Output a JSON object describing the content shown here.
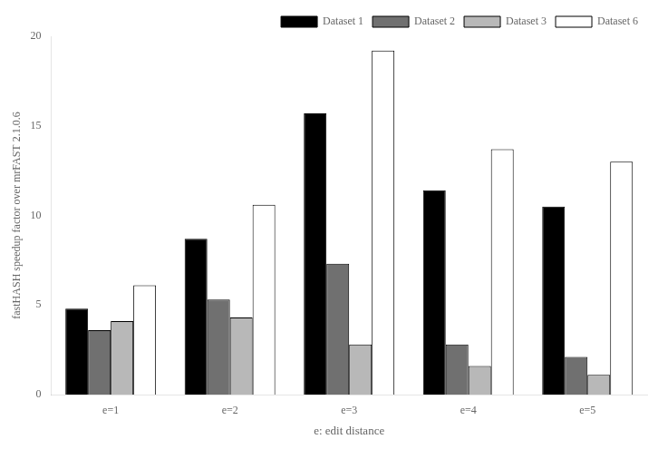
{
  "chart_data": {
    "type": "bar",
    "categories": [
      "e=1",
      "e=2",
      "e=3",
      "e=4",
      "e=5"
    ],
    "series": [
      {
        "name": "Dataset 1",
        "color": "#000000",
        "values": [
          4.8,
          8.7,
          15.7,
          11.4,
          10.5
        ]
      },
      {
        "name": "Dataset 2",
        "color": "#707070",
        "values": [
          3.6,
          5.3,
          7.3,
          2.8,
          2.1
        ]
      },
      {
        "name": "Dataset 3",
        "color": "#b8b8b8",
        "values": [
          4.1,
          4.3,
          2.8,
          1.6,
          1.1
        ]
      },
      {
        "name": "Dataset 6",
        "color": "#ffffff",
        "values": [
          6.1,
          10.6,
          19.2,
          13.7,
          13.0
        ]
      }
    ],
    "xlabel": "e: edit distance",
    "ylabel": "fastHASH speedup factor over mrFAST 2.1.0.6",
    "ylim": [
      0,
      20
    ],
    "yticks": [
      0,
      5,
      10,
      15,
      20
    ],
    "grid": false,
    "legend": "upper right"
  }
}
